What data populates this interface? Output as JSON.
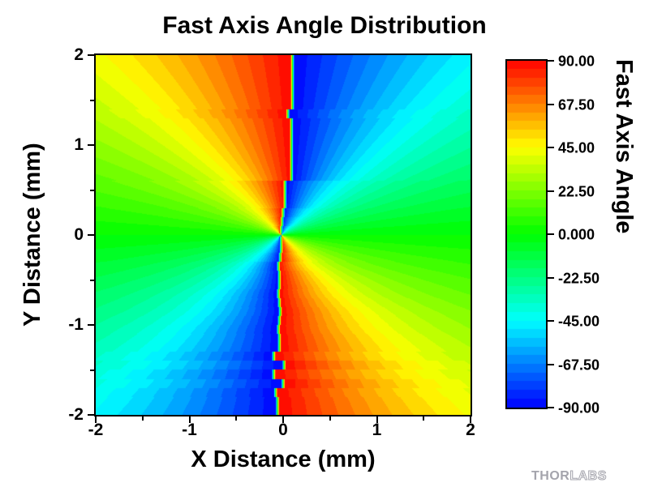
{
  "title": "Fast Axis Angle Distribution",
  "x_axis": {
    "label": "X Distance (mm)"
  },
  "y_axis": {
    "label": "Y Distance (mm)"
  },
  "colorbar": {
    "label": "Fast Axis Angle",
    "tick_labels": [
      "90.00",
      "67.50",
      "45.00",
      "22.50",
      "0.000",
      "-22.50",
      "-45.00",
      "-67.50",
      "-90.00"
    ]
  },
  "logo": {
    "part1": "THOR",
    "part2": "LABS"
  },
  "colors": {
    "background": "#ffffff",
    "frame": "#000000",
    "text": "#000000",
    "logo_gray": "#a4a4ac",
    "colormap_top": "#ff0000",
    "colormap_mid": "#00ff00",
    "colormap_bottom": "#0000ff"
  },
  "chart_data": {
    "type": "heatmap",
    "title": "Fast Axis Angle Distribution",
    "xlabel": "X Distance (mm)",
    "ylabel": "Y Distance (mm)",
    "zlabel": "Fast Axis Angle",
    "xlim": [
      -2,
      2
    ],
    "ylim": [
      -2,
      2
    ],
    "zlim": [
      -90,
      90
    ],
    "x_ticks": [
      -2,
      -1,
      0,
      1,
      2
    ],
    "x_tick_labels": [
      "-2",
      "-1",
      "0",
      "1",
      "2"
    ],
    "x_minor_ticks": [
      -1.5,
      -0.5,
      0.5,
      1.5
    ],
    "y_ticks": [
      2,
      1,
      0,
      -1,
      -2
    ],
    "y_tick_labels": [
      "2",
      "1",
      "0",
      "-1",
      "-2"
    ],
    "y_minor_ticks": [
      1.5,
      0.5,
      -0.5,
      -1.5
    ],
    "z_ticks": [
      90,
      67.5,
      45,
      22.5,
      0,
      -22.5,
      -45,
      -67.5,
      -90
    ],
    "levels": 40,
    "level_step_deg": 4.5,
    "colormap": "rainbow: -90=blue, -45=cyan, 0=green, 45=yellow, 67.5=orange, 90=red (hue=(90-v)*4/3)",
    "field": "value(x,y) = -atan2(y, x-d(y)) in degrees wrapped to (-90,90]; radial fan about (0,0) with noisy vertical seam at x=d(y); thin rainbow blend strip across seam",
    "seam_offsets_by_row": [
      0.1,
      0.1,
      0.1,
      0.1,
      0.1,
      0.1,
      0.05,
      0.09,
      0.09,
      0.09,
      0.09,
      0.09,
      0.09,
      0.09,
      0.02,
      0.02,
      0.02,
      0.0,
      -0.01,
      -0.02,
      -0.02,
      -0.02,
      -0.03,
      -0.05,
      -0.04,
      -0.04,
      -0.05,
      -0.04,
      -0.03,
      -0.04,
      -0.05,
      -0.04,
      -0.04,
      -0.1,
      0.01,
      -0.1,
      0.0,
      -0.08,
      -0.06,
      -0.06
    ],
    "seam_blend_halfwidth_mm": 0.02,
    "grid_on": false,
    "legend_position": "right colorbar, stepped, 40 bands"
  }
}
